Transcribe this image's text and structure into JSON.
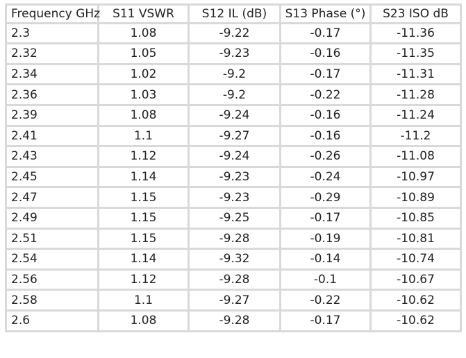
{
  "table": {
    "headers": [
      "Frequency GHz",
      "S11 VSWR",
      "S12 IL (dB)",
      "S13 Phase (°)",
      "S23 ISO dB"
    ],
    "rows": [
      [
        "2.3",
        "1.08",
        "-9.22",
        "-0.17",
        "-11.36"
      ],
      [
        "2.32",
        "1.05",
        "-9.23",
        "-0.16",
        "-11.35"
      ],
      [
        "2.34",
        "1.02",
        "-9.2",
        "-0.17",
        "-11.31"
      ],
      [
        "2.36",
        "1.03",
        "-9.2",
        "-0.22",
        "-11.28"
      ],
      [
        "2.39",
        "1.08",
        "-9.24",
        "-0.16",
        "-11.24"
      ],
      [
        "2.41",
        "1.1",
        "-9.27",
        "-0.16",
        "-11.2"
      ],
      [
        "2.43",
        "1.12",
        "-9.24",
        "-0.26",
        "-11.08"
      ],
      [
        "2.45",
        "1.14",
        "-9.23",
        "-0.24",
        "-10.97"
      ],
      [
        "2.47",
        "1.15",
        "-9.23",
        "-0.29",
        "-10.89"
      ],
      [
        "2.49",
        "1.15",
        "-9.25",
        "-0.17",
        "-10.85"
      ],
      [
        "2.51",
        "1.15",
        "-9.28",
        "-0.19",
        "-10.81"
      ],
      [
        "2.54",
        "1.14",
        "-9.32",
        "-0.14",
        "-10.74"
      ],
      [
        "2.56",
        "1.12",
        "-9.28",
        "-0.1",
        "-10.67"
      ],
      [
        "2.58",
        "1.1",
        "-9.27",
        "-0.22",
        "-10.62"
      ],
      [
        "2.6",
        "1.08",
        "-9.28",
        "-0.17",
        "-10.62"
      ]
    ]
  }
}
